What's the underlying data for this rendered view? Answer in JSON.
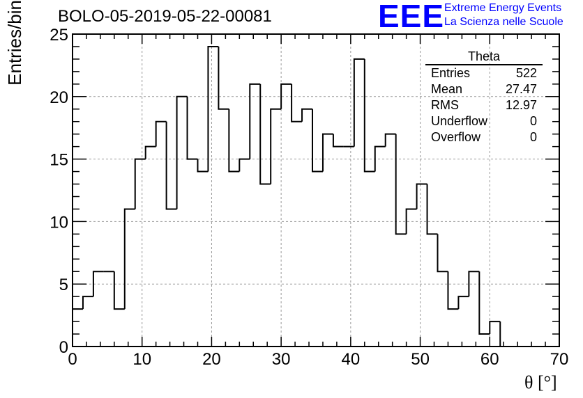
{
  "title": "BOLO-05-2019-05-22-00081",
  "logo": {
    "mark": "EEE",
    "line1": "Extreme Energy Events",
    "line2": "La Scienza nelle Scuole",
    "color": "#0000ff"
  },
  "stats_box": {
    "title": "Theta",
    "rows": [
      {
        "label": "Entries",
        "value": "522"
      },
      {
        "label": "Mean",
        "value": "27.47"
      },
      {
        "label": "RMS",
        "value": "12.97"
      },
      {
        "label": "Underflow",
        "value": "0"
      },
      {
        "label": "Overflow",
        "value": "0"
      }
    ]
  },
  "chart_data": {
    "type": "bar",
    "style": "step-histogram",
    "title": "BOLO-05-2019-05-22-00081",
    "xlabel": "θ [°]",
    "ylabel": "Entries/bin",
    "xlim": [
      0,
      70
    ],
    "ylim": [
      0,
      25
    ],
    "bin_width": 1.5,
    "x_ticks": [
      0,
      10,
      20,
      30,
      40,
      50,
      60,
      70
    ],
    "y_ticks": [
      0,
      5,
      10,
      15,
      20,
      25
    ],
    "grid": true,
    "bins": [
      {
        "x": 0,
        "y": 3
      },
      {
        "x": 1.5,
        "y": 4
      },
      {
        "x": 3,
        "y": 6
      },
      {
        "x": 4.5,
        "y": 6
      },
      {
        "x": 6,
        "y": 3
      },
      {
        "x": 7.5,
        "y": 11
      },
      {
        "x": 9,
        "y": 15
      },
      {
        "x": 10.5,
        "y": 16
      },
      {
        "x": 12,
        "y": 18
      },
      {
        "x": 13.5,
        "y": 11
      },
      {
        "x": 15,
        "y": 20
      },
      {
        "x": 16.5,
        "y": 15
      },
      {
        "x": 18,
        "y": 14
      },
      {
        "x": 19.5,
        "y": 24
      },
      {
        "x": 21,
        "y": 19
      },
      {
        "x": 22.5,
        "y": 14
      },
      {
        "x": 24,
        "y": 15
      },
      {
        "x": 25.5,
        "y": 21
      },
      {
        "x": 27,
        "y": 13
      },
      {
        "x": 28.5,
        "y": 19
      },
      {
        "x": 30,
        "y": 21
      },
      {
        "x": 31.5,
        "y": 18
      },
      {
        "x": 33,
        "y": 19
      },
      {
        "x": 34.5,
        "y": 14
      },
      {
        "x": 36,
        "y": 17
      },
      {
        "x": 37.5,
        "y": 16
      },
      {
        "x": 39,
        "y": 16
      },
      {
        "x": 40.5,
        "y": 23
      },
      {
        "x": 42,
        "y": 14
      },
      {
        "x": 43.5,
        "y": 16
      },
      {
        "x": 45,
        "y": 17
      },
      {
        "x": 46.5,
        "y": 9
      },
      {
        "x": 48,
        "y": 11
      },
      {
        "x": 49.5,
        "y": 13
      },
      {
        "x": 51,
        "y": 9
      },
      {
        "x": 52.5,
        "y": 6
      },
      {
        "x": 54,
        "y": 3
      },
      {
        "x": 55.5,
        "y": 4
      },
      {
        "x": 57,
        "y": 6
      },
      {
        "x": 58.5,
        "y": 1
      },
      {
        "x": 60,
        "y": 2
      },
      {
        "x": 61.5,
        "y": 0
      },
      {
        "x": 63,
        "y": 0
      },
      {
        "x": 64.5,
        "y": 0
      },
      {
        "x": 66,
        "y": 0
      },
      {
        "x": 67.5,
        "y": 0
      }
    ]
  }
}
